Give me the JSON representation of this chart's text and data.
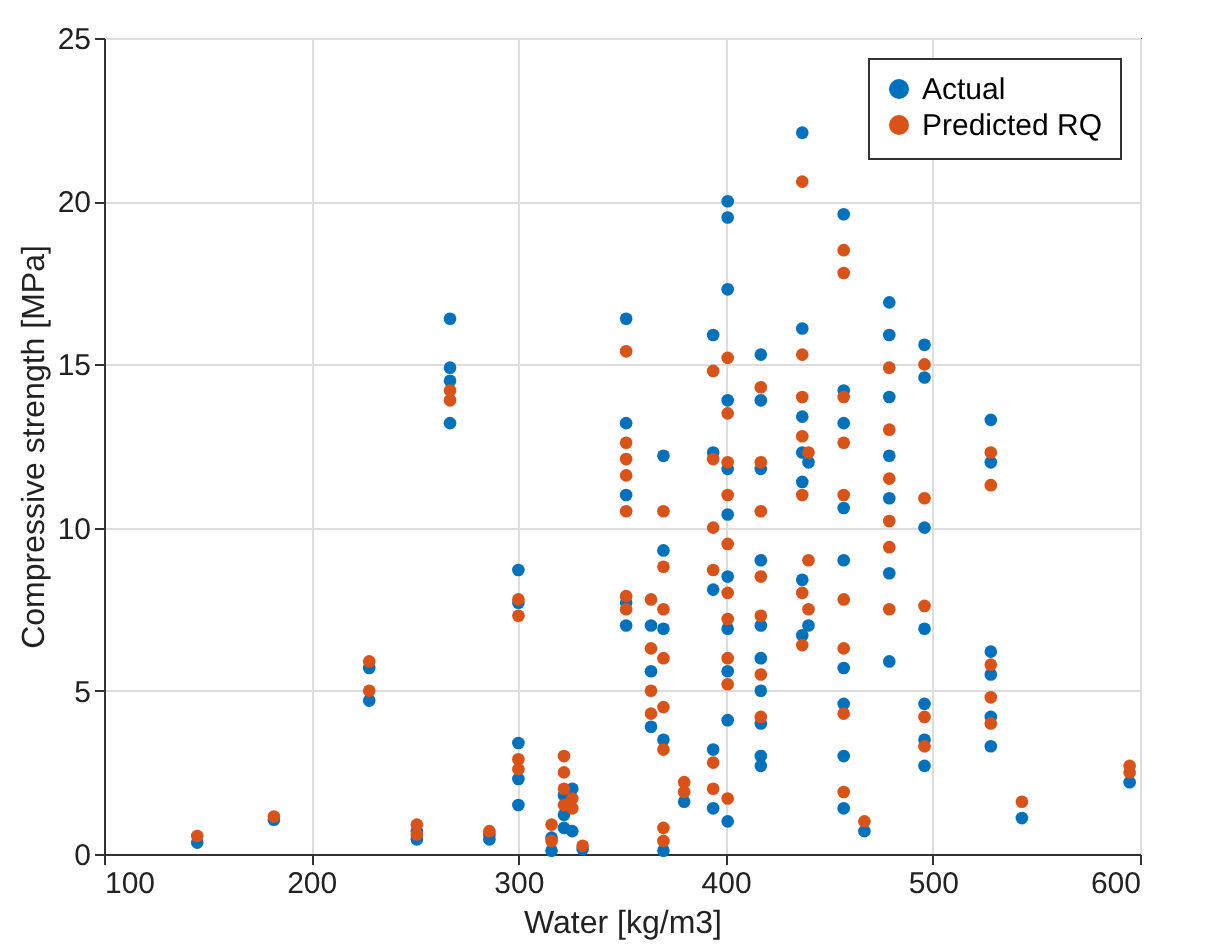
{
  "chart_data": {
    "type": "scatter",
    "xlabel": "Water [kg/m3]",
    "ylabel": "Compressive strength [MPa]",
    "xlim": [
      100,
      600
    ],
    "xticks": [
      100,
      200,
      300,
      400,
      500,
      600
    ],
    "ylim": [
      0,
      25
    ],
    "yticks": [
      0,
      5,
      10,
      15,
      20,
      25
    ],
    "grid": true,
    "legend": "top right",
    "marker": "circle",
    "series": [
      {
        "name": "Actual",
        "color": "#0072bd",
        "x": [
          145,
          182,
          228,
          228,
          251,
          251,
          267,
          267,
          267,
          267,
          286,
          286,
          300,
          300,
          300,
          300,
          300,
          316,
          316,
          322,
          322,
          322,
          326,
          326,
          331,
          352,
          352,
          352,
          352,
          352,
          364,
          364,
          364,
          370,
          370,
          370,
          370,
          370,
          380,
          394,
          394,
          394,
          394,
          394,
          401,
          401,
          401,
          401,
          401,
          401,
          401,
          401,
          401,
          401,
          401,
          417,
          417,
          417,
          417,
          417,
          417,
          417,
          417,
          417,
          417,
          437,
          437,
          437,
          437,
          437,
          437,
          437,
          440,
          440,
          457,
          457,
          457,
          457,
          457,
          457,
          457,
          457,
          457,
          467,
          479,
          479,
          479,
          479,
          479,
          479,
          479,
          496,
          496,
          496,
          496,
          496,
          496,
          496,
          528,
          528,
          528,
          528,
          528,
          528,
          543,
          595
        ],
        "values": [
          0.35,
          1.05,
          4.7,
          5.7,
          0.45,
          0.7,
          16.4,
          14.9,
          14.5,
          13.2,
          0.45,
          0.6,
          8.7,
          7.7,
          3.4,
          2.3,
          1.5,
          0.1,
          0.5,
          0.8,
          1.2,
          1.8,
          2.0,
          0.7,
          0.15,
          16.4,
          13.2,
          11.0,
          7.7,
          7.0,
          7.0,
          5.6,
          3.9,
          12.2,
          9.3,
          6.9,
          3.5,
          0.1,
          1.6,
          15.9,
          12.3,
          8.1,
          3.2,
          1.4,
          20.0,
          19.5,
          17.3,
          13.9,
          11.8,
          10.4,
          8.5,
          6.9,
          5.6,
          4.1,
          1.0,
          15.3,
          13.9,
          11.8,
          9.0,
          7.0,
          6.0,
          5.0,
          4.0,
          3.0,
          2.7,
          22.1,
          16.1,
          13.4,
          12.3,
          11.4,
          8.4,
          6.7,
          12.0,
          7.0,
          19.6,
          14.2,
          13.2,
          10.6,
          9.0,
          5.7,
          4.6,
          3.0,
          1.4,
          0.7,
          16.9,
          15.9,
          14.0,
          12.2,
          10.9,
          8.6,
          5.9,
          15.6,
          14.6,
          10.0,
          6.9,
          4.6,
          3.5,
          2.7,
          13.3,
          12.0,
          6.2,
          5.5,
          4.2,
          3.3,
          1.1,
          2.2
        ]
      },
      {
        "name": "Predicted RQ",
        "color": "#d95319",
        "x": [
          145,
          182,
          228,
          228,
          251,
          251,
          267,
          267,
          286,
          300,
          300,
          300,
          300,
          316,
          316,
          322,
          322,
          322,
          322,
          326,
          326,
          331,
          352,
          352,
          352,
          352,
          352,
          352,
          352,
          364,
          364,
          364,
          364,
          370,
          370,
          370,
          370,
          370,
          370,
          370,
          370,
          380,
          380,
          394,
          394,
          394,
          394,
          394,
          394,
          401,
          401,
          401,
          401,
          401,
          401,
          401,
          401,
          401,
          401,
          417,
          417,
          417,
          417,
          417,
          417,
          417,
          437,
          437,
          437,
          437,
          437,
          437,
          437,
          440,
          440,
          440,
          457,
          457,
          457,
          457,
          457,
          457,
          457,
          457,
          457,
          467,
          479,
          479,
          479,
          479,
          479,
          479,
          496,
          496,
          496,
          496,
          496,
          528,
          528,
          528,
          528,
          528,
          543,
          595,
          595
        ],
        "values": [
          0.55,
          1.15,
          5.0,
          5.9,
          0.6,
          0.9,
          14.2,
          13.9,
          0.7,
          7.8,
          7.3,
          2.9,
          2.6,
          0.9,
          0.4,
          3.0,
          2.5,
          2.0,
          1.5,
          1.4,
          1.7,
          0.25,
          15.4,
          12.6,
          12.1,
          11.6,
          10.5,
          7.9,
          7.5,
          7.8,
          6.3,
          5.0,
          4.3,
          10.5,
          8.8,
          7.5,
          6.0,
          4.5,
          3.2,
          0.8,
          0.4,
          2.2,
          1.9,
          14.8,
          12.1,
          10.0,
          8.7,
          2.8,
          2.0,
          15.2,
          13.5,
          12.0,
          11.0,
          9.5,
          8.0,
          7.2,
          6.0,
          5.2,
          1.7,
          14.3,
          12.0,
          10.5,
          8.5,
          7.3,
          5.5,
          4.2,
          20.6,
          15.3,
          14.0,
          12.8,
          11.0,
          8.0,
          6.4,
          12.3,
          9.0,
          7.5,
          18.5,
          17.8,
          14.0,
          12.6,
          11.0,
          7.8,
          6.3,
          4.3,
          1.9,
          1.0,
          14.9,
          13.0,
          11.5,
          10.2,
          9.4,
          7.5,
          15.0,
          10.9,
          7.6,
          4.2,
          3.3,
          12.3,
          11.3,
          5.8,
          4.8,
          4.0,
          1.6,
          2.7,
          2.5
        ]
      }
    ]
  }
}
